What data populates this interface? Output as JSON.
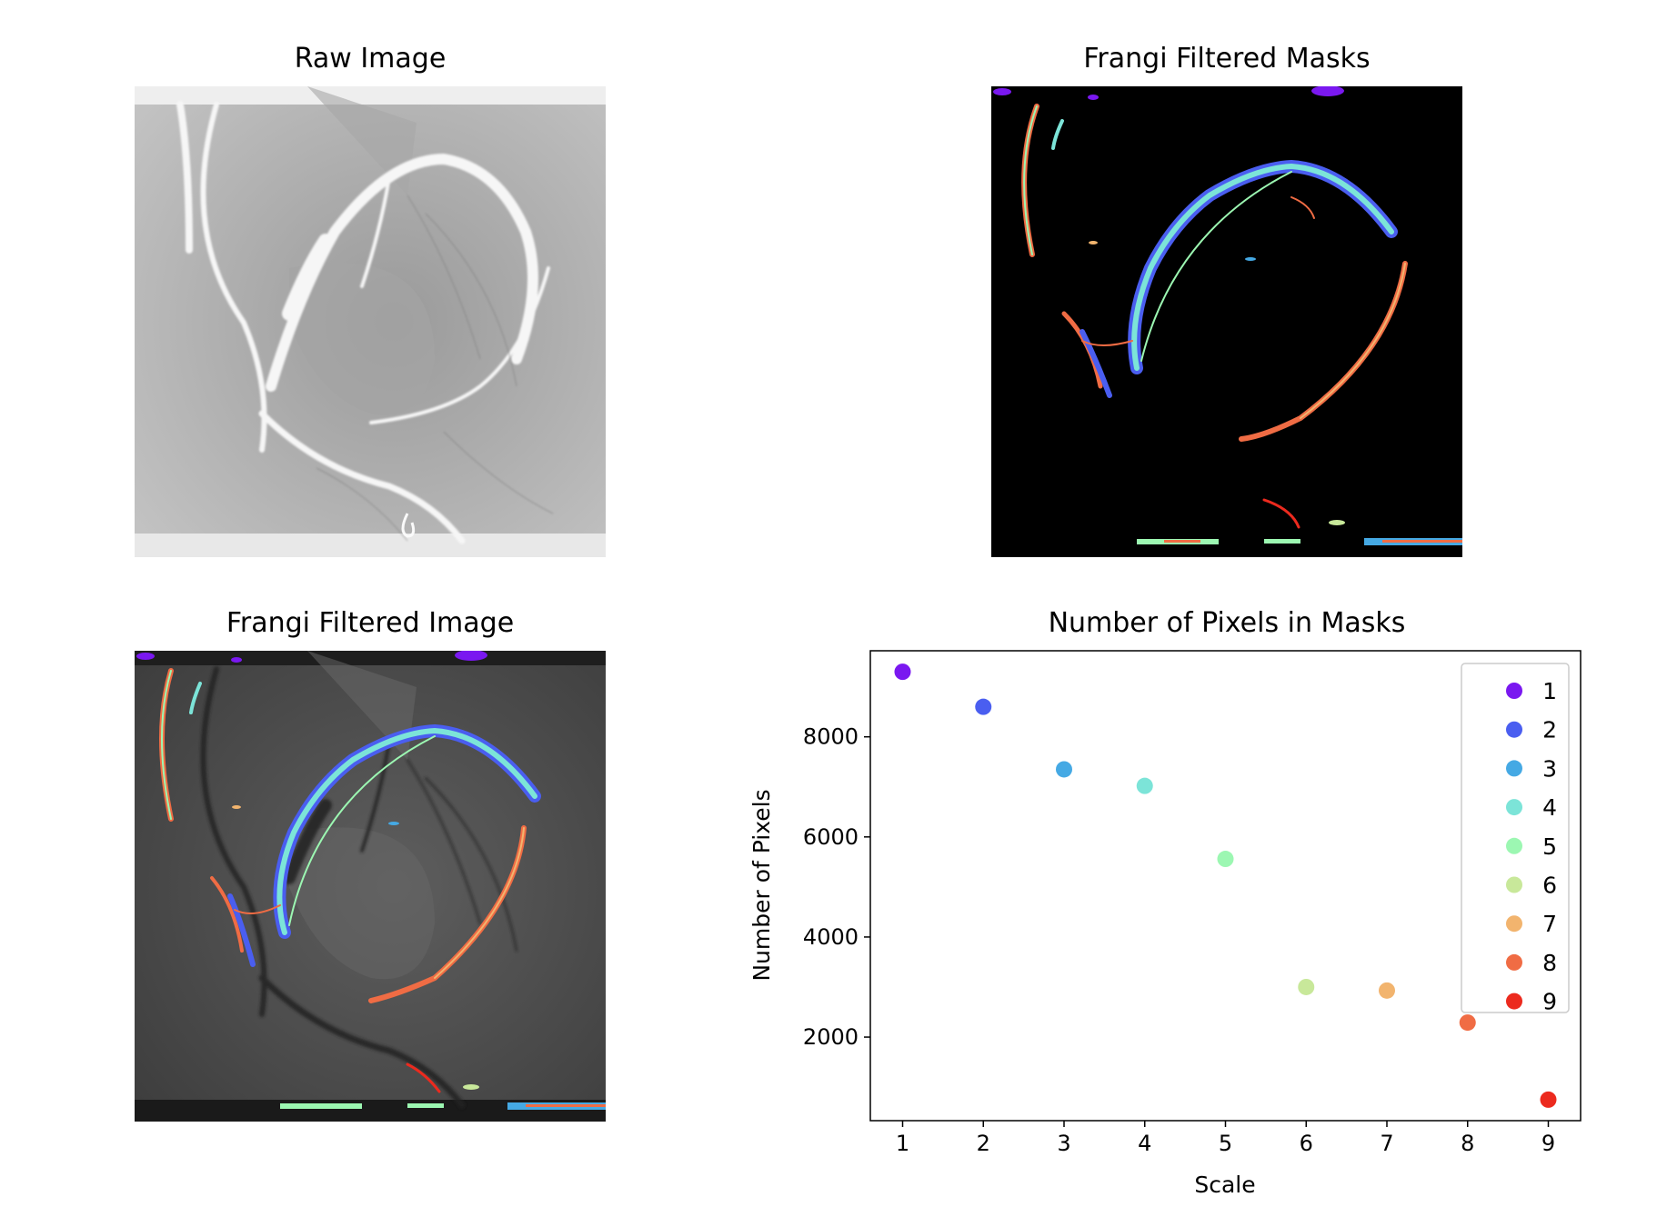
{
  "panels": {
    "raw_title": "Raw Image",
    "masks_title": "Frangi Filtered Masks",
    "filtered_title": "Frangi Filtered Image",
    "scatter_title": "Number of Pixels in Masks"
  },
  "colors": {
    "scale_1": "#7a18f0",
    "scale_2": "#4a5ef0",
    "scale_3": "#45a9e4",
    "scale_4": "#7ce4d8",
    "scale_5": "#9cf7b2",
    "scale_6": "#c8e89a",
    "scale_7": "#f2b46e",
    "scale_8": "#f06c44",
    "scale_9": "#ec2a1e"
  },
  "chart_data": {
    "type": "scatter",
    "title": "Number of Pixels in Masks",
    "xlabel": "Scale",
    "ylabel": "Number of Pixels",
    "x": [
      1,
      2,
      3,
      4,
      5,
      6,
      7,
      8,
      9
    ],
    "y": [
      9300,
      8600,
      7350,
      7020,
      5560,
      3000,
      2930,
      2290,
      750
    ],
    "xticks": [
      "1",
      "2",
      "3",
      "4",
      "5",
      "6",
      "7",
      "8",
      "9"
    ],
    "yticks": [
      "2000",
      "4000",
      "6000",
      "8000"
    ],
    "xlim": [
      0.6,
      9.4
    ],
    "ylim": [
      330,
      9720
    ],
    "grid": false,
    "legend_position": "top-right",
    "legend": [
      "1",
      "2",
      "3",
      "4",
      "5",
      "6",
      "7",
      "8",
      "9"
    ]
  }
}
